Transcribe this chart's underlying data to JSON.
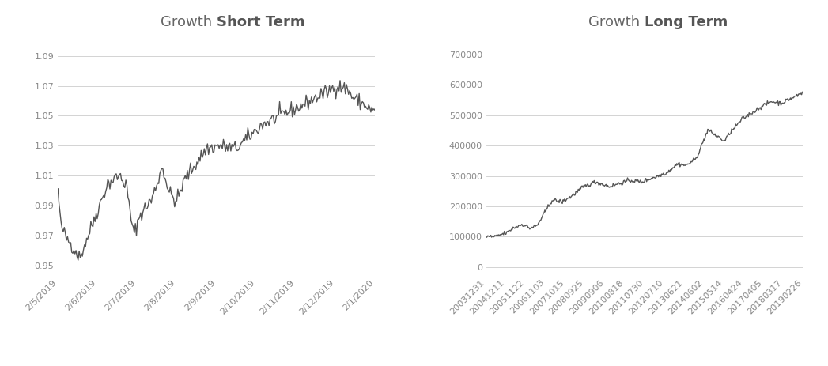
{
  "short_term": {
    "title_normal": "Growth ",
    "title_bold": "Short Term",
    "yticks": [
      0.95,
      0.97,
      0.99,
      1.01,
      1.03,
      1.05,
      1.07,
      1.09
    ],
    "ylim": [
      0.944,
      1.098
    ],
    "xtick_labels": [
      "2/5/2019",
      "2/6/2019",
      "2/7/2019",
      "2/8/2019",
      "2/9/2019",
      "2/10/2019",
      "2/11/2019",
      "2/12/2019",
      "2/1/2020"
    ],
    "line_color": "#555555",
    "line_width": 1.0,
    "grid_color": "#cccccc",
    "bg_color": "#ffffff"
  },
  "long_term": {
    "title_normal": "Growth ",
    "title_bold": "Long Term",
    "yticks": [
      0,
      100000,
      200000,
      300000,
      400000,
      500000,
      600000,
      700000
    ],
    "ylim": [
      -25000,
      735000
    ],
    "xtick_labels": [
      "20031231",
      "20041211",
      "20051122",
      "20061103",
      "20071015",
      "20080925",
      "20090906",
      "20100818",
      "20110730",
      "20120710",
      "20130621",
      "20140602",
      "20150514",
      "20160424",
      "20170405",
      "20180317",
      "20190226"
    ],
    "line_color": "#555555",
    "line_width": 1.0,
    "grid_color": "#cccccc",
    "bg_color": "#ffffff"
  },
  "fig_bg": "#ffffff",
  "title_fontsize": 13,
  "tick_fontsize": 8,
  "tick_color": "#888888"
}
